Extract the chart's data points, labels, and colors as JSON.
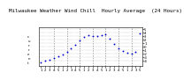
{
  "title": "Milwaukee Weather Wind Chill  Hourly Average  (24 Hours)",
  "title_fontsize": 4.2,
  "x_hours": [
    0,
    1,
    2,
    3,
    4,
    5,
    6,
    7,
    8,
    9,
    10,
    11,
    12,
    13,
    14,
    15,
    16,
    17,
    18,
    19,
    20,
    21,
    22,
    23
  ],
  "y_values": [
    -4.5,
    -4.2,
    -3.8,
    -3.4,
    -2.9,
    -2.3,
    -1.5,
    -0.6,
    0.5,
    1.8,
    2.8,
    3.2,
    3.0,
    3.1,
    3.3,
    3.5,
    2.2,
    0.8,
    -0.5,
    -1.2,
    -1.8,
    -2.0,
    -1.6,
    3.8
  ],
  "dot_color": "#0000cc",
  "dot_size": 1.8,
  "background_color": "#ffffff",
  "grid_color": "#888888",
  "ylim": [
    -5.5,
    5.5
  ],
  "xlim": [
    -0.5,
    23.5
  ],
  "ytick_values": [
    5,
    4,
    3,
    2,
    1,
    0,
    -1,
    -2,
    -3,
    -4
  ],
  "ytick_labels": [
    "5",
    "4",
    "3",
    "2",
    "1",
    "0",
    "-1",
    "-2",
    "-3",
    "-4"
  ],
  "grid_x_positions": [
    3,
    6,
    9,
    12,
    15,
    18,
    21
  ],
  "x_tick_labels": [
    "1",
    "2",
    "3",
    "4",
    "5",
    "1",
    "2",
    "3",
    "4",
    "5",
    "1",
    "2",
    "3",
    "4",
    "5",
    "1",
    "2",
    "3",
    "4",
    "5",
    "1",
    "2",
    "3",
    "5"
  ]
}
